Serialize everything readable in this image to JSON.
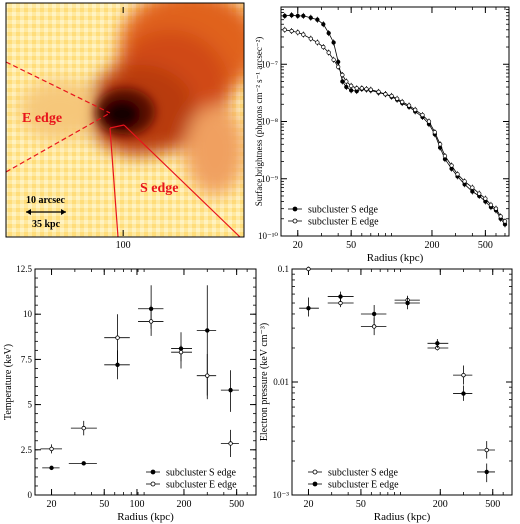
{
  "xray_image": {
    "labels": {
      "e_edge": "E edge",
      "s_edge": "S edge",
      "scale_arcsec": "10 arcsec",
      "scale_kpc": "35 kpc"
    },
    "colors": {
      "label": "#e8141c",
      "bright": "#1a0000",
      "mid": "#c43a0a",
      "faint": "#fff7c9"
    }
  },
  "chart_data": [
    {
      "type": "line",
      "xlabel": "Radius (kpc)",
      "ylabel": "Surface brightness (photons cm⁻² s⁻¹ arcsec⁻²)",
      "xscale": "log",
      "yscale": "log",
      "xlim": [
        15,
        750
      ],
      "ylim": [
        1e-10,
        1e-06
      ],
      "xticks": [
        "20",
        "50",
        "100",
        "200",
        "500"
      ],
      "yticks": [
        "10⁻¹⁰",
        "10⁻⁹",
        "10⁻⁸",
        "10⁻⁷"
      ],
      "legend_position": "bottom-left",
      "series": [
        {
          "name": "subcluster S edge",
          "marker": "filled",
          "x": [
            16,
            18,
            20,
            22,
            25,
            28,
            31,
            34,
            37,
            40,
            43,
            46,
            50,
            55,
            60,
            65,
            70,
            80,
            90,
            100,
            110,
            120,
            135,
            150,
            170,
            190,
            210,
            230,
            250,
            280,
            310,
            350,
            400,
            450,
            500,
            550,
            600,
            650,
            700
          ],
          "y": [
            7e-07,
            7.2e-07,
            7e-07,
            7e-07,
            6.5e-07,
            6e-07,
            5e-07,
            3.5e-07,
            2.4e-07,
            1.1e-07,
            5e-08,
            4e-08,
            3.5e-08,
            3.4e-08,
            3.7e-08,
            3.6e-08,
            3.5e-08,
            3.2e-08,
            3e-08,
            2.7e-08,
            2.4e-08,
            2.1e-08,
            1.8e-08,
            1.5e-08,
            1.2e-08,
            9e-09,
            6e-09,
            3.5e-09,
            2.2e-09,
            1.5e-09,
            1.1e-09,
            8e-10,
            6e-10,
            5e-10,
            4e-10,
            3.2e-10,
            2.8e-10,
            2e-10,
            1.6e-10
          ]
        },
        {
          "name": "subcluster E edge",
          "marker": "open",
          "x": [
            16,
            18,
            20,
            22,
            25,
            28,
            31,
            34,
            37,
            40,
            43,
            46,
            50,
            55,
            60,
            65,
            70,
            80,
            90,
            100,
            110,
            120,
            135,
            150,
            170,
            190,
            210,
            230,
            250,
            280,
            310,
            350,
            400,
            450,
            500,
            550,
            600,
            650,
            700
          ],
          "y": [
            4e-07,
            3.8e-07,
            3.6e-07,
            3.3e-07,
            2.8e-07,
            2.4e-07,
            2e-07,
            1.6e-07,
            1.2e-07,
            9e-08,
            6.5e-08,
            5e-08,
            4.2e-08,
            3.8e-08,
            3.8e-08,
            3.7e-08,
            3.6e-08,
            3.3e-08,
            3e-08,
            2.8e-08,
            2.5e-08,
            2.2e-08,
            1.9e-08,
            1.6e-08,
            1.3e-08,
            1e-08,
            6.5e-09,
            4e-09,
            2.5e-09,
            1.7e-09,
            1.2e-09,
            9e-10,
            7e-10,
            5.5e-10,
            4.5e-10,
            3.5e-10,
            3e-10,
            2.2e-10,
            1.8e-10
          ]
        }
      ]
    },
    {
      "type": "scatter",
      "xlabel": "Radius (kpc)",
      "ylabel": "Temperature (keV)",
      "xscale": "log",
      "xlim": [
        15,
        700
      ],
      "ylim": [
        0,
        12.5
      ],
      "xticks": [
        "20",
        "50",
        "100",
        "200",
        "500"
      ],
      "yticks": [
        "0",
        "2.5",
        "5",
        "7.5",
        "10",
        "12.5"
      ],
      "legend_position": "bottom-right",
      "series": [
        {
          "name": "subcluster S edge",
          "marker": "filled",
          "points": [
            {
              "x": 20,
              "y": 1.5,
              "xlo": 17,
              "xhi": 23,
              "ylo": 1.4,
              "yhi": 1.6
            },
            {
              "x": 35,
              "y": 1.75,
              "xlo": 27,
              "xhi": 44,
              "ylo": 1.65,
              "yhi": 1.85
            },
            {
              "x": 63,
              "y": 7.2,
              "xlo": 50,
              "xhi": 78,
              "ylo": 6.4,
              "yhi": 8.0
            },
            {
              "x": 113,
              "y": 10.3,
              "xlo": 90,
              "xhi": 140,
              "ylo": 9.2,
              "yhi": 11.6
            },
            {
              "x": 190,
              "y": 8.1,
              "xlo": 160,
              "xhi": 230,
              "ylo": 7.0,
              "yhi": 9.0
            },
            {
              "x": 300,
              "y": 9.1,
              "xlo": 250,
              "xhi": 350,
              "ylo": 5.3,
              "yhi": 11.6
            },
            {
              "x": 450,
              "y": 5.8,
              "xlo": 380,
              "xhi": 520,
              "ylo": 4.6,
              "yhi": 6.9
            }
          ]
        },
        {
          "name": "subcluster E edge",
          "marker": "open",
          "points": [
            {
              "x": 20,
              "y": 2.55,
              "xlo": 16.5,
              "xhi": 24,
              "ylo": 2.3,
              "yhi": 2.8
            },
            {
              "x": 35,
              "y": 3.7,
              "xlo": 28,
              "xhi": 44,
              "ylo": 3.3,
              "yhi": 4.1
            },
            {
              "x": 63,
              "y": 8.7,
              "xlo": 50,
              "xhi": 78,
              "ylo": 7.3,
              "yhi": 10.0
            },
            {
              "x": 113,
              "y": 9.6,
              "xlo": 90,
              "xhi": 140,
              "ylo": 8.8,
              "yhi": 10.5
            },
            {
              "x": 190,
              "y": 7.9,
              "xlo": 160,
              "xhi": 230,
              "ylo": 7.4,
              "yhi": 8.3
            },
            {
              "x": 300,
              "y": 6.6,
              "xlo": 250,
              "xhi": 350,
              "ylo": 5.5,
              "yhi": 7.8
            },
            {
              "x": 450,
              "y": 2.85,
              "xlo": 380,
              "xhi": 520,
              "ylo": 2.1,
              "yhi": 3.6
            }
          ]
        }
      ]
    },
    {
      "type": "scatter",
      "xlabel": "Radius (kpc)",
      "ylabel": "Electron pressure (keV cm⁻³)",
      "xscale": "log",
      "yscale": "log",
      "xlim": [
        15,
        700
      ],
      "ylim": [
        0.001,
        0.1
      ],
      "xticks": [
        "20",
        "50",
        "100",
        "200",
        "500"
      ],
      "yticks": [
        "10⁻³",
        "0.01",
        "0.1"
      ],
      "legend_position": "bottom-left",
      "series": [
        {
          "name": "subcluster S edge",
          "marker": "open",
          "points": [
            {
              "x": 20,
              "y": 0.1,
              "xlo": 17,
              "xhi": 24,
              "ylo": 0.095,
              "yhi": 0.105
            },
            {
              "x": 35,
              "y": 0.05,
              "xlo": 28,
              "xhi": 44,
              "ylo": 0.046,
              "yhi": 0.055
            },
            {
              "x": 63,
              "y": 0.031,
              "xlo": 50,
              "xhi": 78,
              "ylo": 0.026,
              "yhi": 0.037
            },
            {
              "x": 113,
              "y": 0.053,
              "xlo": 90,
              "xhi": 140,
              "ylo": 0.049,
              "yhi": 0.058
            },
            {
              "x": 190,
              "y": 0.02,
              "xlo": 160,
              "xhi": 230,
              "ylo": 0.019,
              "yhi": 0.021
            },
            {
              "x": 300,
              "y": 0.0115,
              "xlo": 250,
              "xhi": 350,
              "ylo": 0.0095,
              "yhi": 0.014
            },
            {
              "x": 450,
              "y": 0.0025,
              "xlo": 380,
              "xhi": 520,
              "ylo": 0.0021,
              "yhi": 0.003
            }
          ]
        },
        {
          "name": "subcluster E edge",
          "marker": "filled",
          "points": [
            {
              "x": 20,
              "y": 0.045,
              "xlo": 17,
              "xhi": 24,
              "ylo": 0.038,
              "yhi": 0.056
            },
            {
              "x": 35,
              "y": 0.057,
              "xlo": 28,
              "xhi": 44,
              "ylo": 0.051,
              "yhi": 0.063
            },
            {
              "x": 63,
              "y": 0.04,
              "xlo": 50,
              "xhi": 78,
              "ylo": 0.033,
              "yhi": 0.048
            },
            {
              "x": 113,
              "y": 0.05,
              "xlo": 90,
              "xhi": 140,
              "ylo": 0.044,
              "yhi": 0.057
            },
            {
              "x": 190,
              "y": 0.022,
              "xlo": 160,
              "xhi": 230,
              "ylo": 0.02,
              "yhi": 0.024
            },
            {
              "x": 300,
              "y": 0.0079,
              "xlo": 250,
              "xhi": 350,
              "ylo": 0.0068,
              "yhi": 0.0093
            },
            {
              "x": 450,
              "y": 0.0016,
              "xlo": 380,
              "xhi": 520,
              "ylo": 0.0013,
              "yhi": 0.0019
            }
          ]
        }
      ]
    }
  ]
}
